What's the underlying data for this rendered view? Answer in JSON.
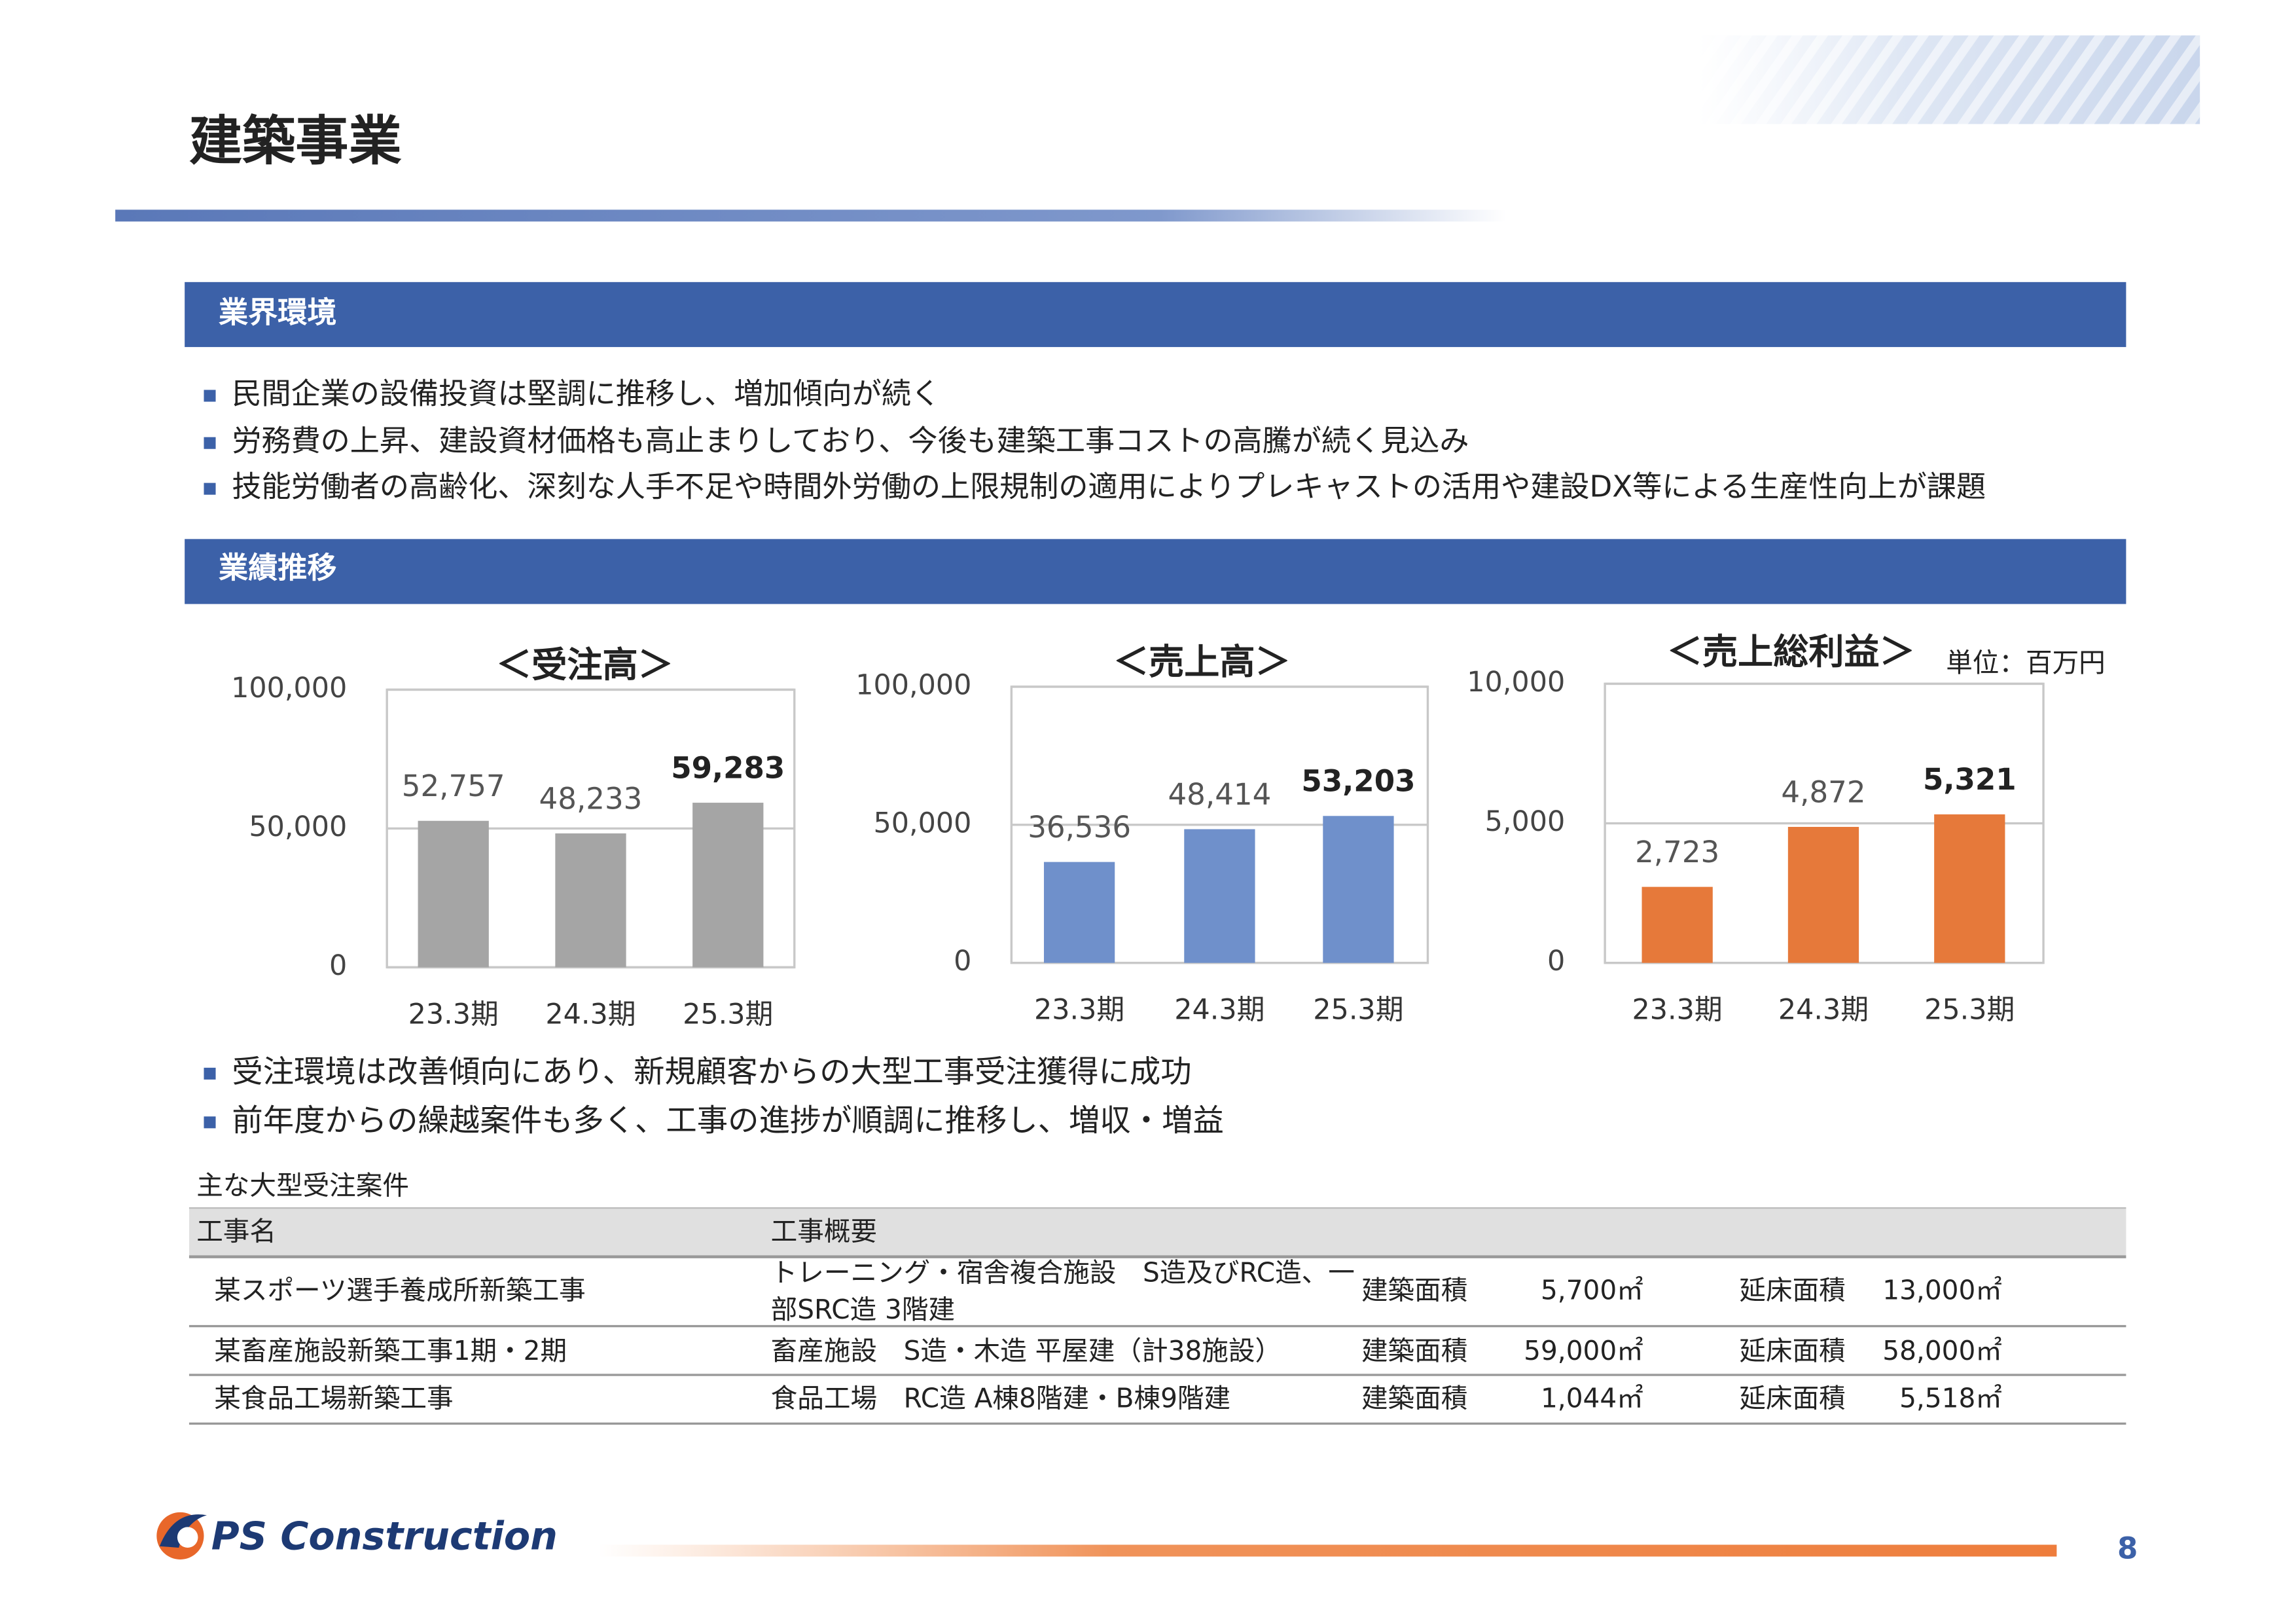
{
  "header": {
    "title": "建築事業"
  },
  "sections": [
    {
      "heading": "業界環境",
      "bullets": [
        "民間企業の設備投資は堅調に推移し、増加傾向が続く",
        "労務費の上昇、建設資材価格も高止まりしており、今後も建築工事コストの高騰が続く見込み",
        "技能労働者の高齢化、深刻な人手不足や時間外労働の上限規制の適用によりプレキャストの活用や建設DX等による生産性向上が課題"
      ]
    },
    {
      "heading": "業績推移",
      "bullets": [
        "受注環境は改善傾向にあり、新規顧客からの大型工事受注獲得に成功",
        "前年度からの繰越案件も多く、工事の進捗が順調に推移し、増収・増益"
      ]
    }
  ],
  "chart_data": [
    {
      "type": "bar",
      "title": "＜受注高＞",
      "categories": [
        "23.3期",
        "24.3期",
        "25.3期"
      ],
      "values": [
        52757,
        48233,
        59283
      ],
      "value_labels": [
        "52,757",
        "48,233",
        "59,283"
      ],
      "color": "#a5a5a5",
      "ylim": [
        0,
        100000
      ],
      "yticks": [
        0,
        {
          "value": 50000,
          "label": "50,000"
        },
        {
          "value": 100000,
          "label": "100,000"
        }
      ],
      "grid": true
    },
    {
      "type": "bar",
      "title": "＜売上高＞",
      "categories": [
        "23.3期",
        "24.3期",
        "25.3期"
      ],
      "values": [
        36536,
        48414,
        53203
      ],
      "value_labels": [
        "36,536",
        "48,414",
        "53,203"
      ],
      "color": "#6f90cb",
      "ylim": [
        0,
        100000
      ],
      "yticks": [
        0,
        {
          "value": 50000,
          "label": "50,000"
        },
        {
          "value": 100000,
          "label": "100,000"
        }
      ],
      "grid": true
    },
    {
      "type": "bar",
      "title": "＜売上総利益＞",
      "categories": [
        "23.3期",
        "24.3期",
        "25.3期"
      ],
      "values": [
        2723,
        4872,
        5321
      ],
      "value_labels": [
        "2,723",
        "4,872",
        "5,321"
      ],
      "color": "#e6793a",
      "ylim": [
        0,
        10000
      ],
      "yticks": [
        0,
        {
          "value": 5000,
          "label": "5,000"
        },
        {
          "value": 10000,
          "label": "10,000"
        }
      ],
      "grid": true
    }
  ],
  "unit_note": "単位：百万円",
  "table": {
    "caption": "主な大型受注案件",
    "columns": [
      "工事名",
      "工事概要"
    ],
    "rows": [
      [
        "某スポーツ選手養成所新築工事",
        [
          "トレーニング・宿舎複合施設　S造及びRC造、一",
          "部SRC造 3階建"
        ],
        "建築面積",
        "5,700㎡",
        "延床面積",
        "13,000㎡"
      ],
      [
        "某畜産施設新築工事1期・2期",
        [
          "畜産施設　S造・木造 平屋建（計38施設）"
        ],
        "建築面積",
        "59,000㎡",
        "延床面積",
        "58,000㎡"
      ],
      [
        "某食品工場新築工事",
        [
          "食品工場　RC造 A棟8階建・B棟9階建"
        ],
        "建築面積",
        "1,044㎡",
        "延床面積",
        "5,518㎡"
      ]
    ]
  },
  "footer": {
    "logo": "PS Construction",
    "page": 8
  }
}
